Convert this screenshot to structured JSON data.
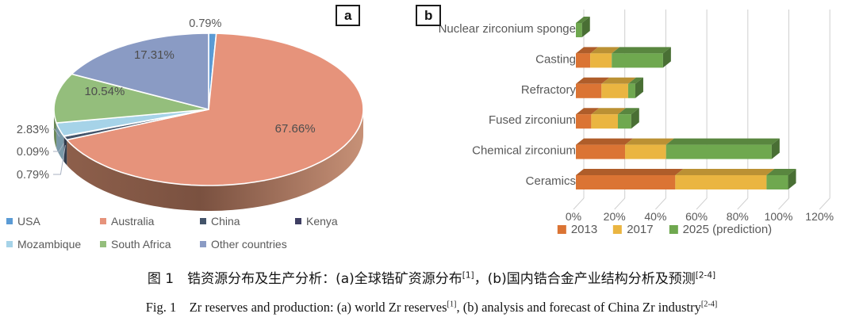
{
  "figure": {
    "panel_tags": {
      "a": "a",
      "b": "b"
    },
    "caption_cn": {
      "segments": [
        {
          "t": "图 1　锆资源分布及生产分析：(a)全球锆矿资源分布"
        },
        {
          "t": "[1]",
          "sup": true
        },
        {
          "t": "，(b)国内锆合金产业结构分析及预测"
        },
        {
          "t": "[2-4]",
          "sup": true
        }
      ]
    },
    "caption_en": {
      "segments": [
        {
          "t": "Fig. 1　Zr reserves and production: (a) world Zr reserves"
        },
        {
          "t": "[1]",
          "sup": true
        },
        {
          "t": ", (b) analysis and forecast of China Zr industry"
        },
        {
          "t": "[2-4]",
          "sup": true
        }
      ]
    }
  },
  "text_color": "#595959",
  "grid_color": "#CFCFCF",
  "chart_data": [
    {
      "type": "pie",
      "panel": "a",
      "projection": "3d",
      "legend_position": "bottom",
      "slices": [
        {
          "label": "USA",
          "value": 0.79,
          "pct_label": "0.79%",
          "color": "#5B9BD5",
          "label_hint": "top"
        },
        {
          "label": "Australia",
          "value": 67.66,
          "pct_label": "67.66%",
          "color": "#E6937B",
          "label_hint": "inside"
        },
        {
          "label": "China",
          "value": 0.79,
          "pct_label": "0.79%",
          "color": "#44546A",
          "label_hint": "left"
        },
        {
          "label": "Kenya",
          "value": 0.09,
          "pct_label": "0.09%",
          "color": "#3F3F63",
          "label_hint": "left"
        },
        {
          "label": "Mozambique",
          "value": 2.83,
          "pct_label": "2.83%",
          "color": "#A6D3E8",
          "label_hint": "left"
        },
        {
          "label": "South Africa",
          "value": 10.54,
          "pct_label": "10.54%",
          "color": "#94BE7C",
          "label_hint": "inside"
        },
        {
          "label": "Other countries",
          "value": 17.31,
          "pct_label": "17.31%",
          "color": "#8A9BC4",
          "label_hint": "inside"
        }
      ]
    },
    {
      "type": "bar",
      "panel": "b",
      "orientation": "horizontal",
      "stacked": true,
      "grid": true,
      "legend_position": "bottom",
      "categories": [
        "Nuclear zirconium sponge",
        "Casting",
        "Refractory",
        "Fused zirconium",
        "Chemical zirconium",
        "Ceramics"
      ],
      "series": [
        {
          "name": "2013",
          "color": "#DB7434",
          "values": [
            0,
            7,
            12.5,
            7.5,
            24,
            48.5
          ]
        },
        {
          "name": "2017",
          "color": "#EAB541",
          "values": [
            0,
            10.5,
            13,
            13,
            20,
            44.5
          ]
        },
        {
          "name": "2025 (prediction)",
          "color": "#6FA84F",
          "values": [
            3,
            25,
            3.5,
            6.5,
            51.5,
            10.5
          ]
        }
      ],
      "xticks": [
        "0%",
        "20%",
        "40%",
        "60%",
        "80%",
        "100%",
        "120%"
      ],
      "xlim": [
        0,
        120
      ]
    }
  ]
}
